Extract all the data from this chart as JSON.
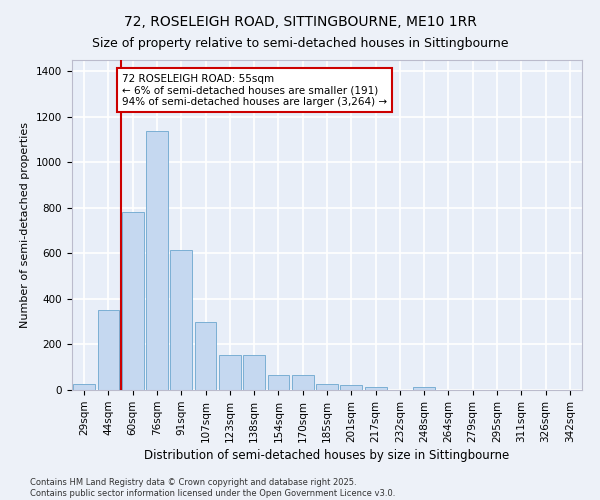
{
  "title1": "72, ROSELEIGH ROAD, SITTINGBOURNE, ME10 1RR",
  "title2": "Size of property relative to semi-detached houses in Sittingbourne",
  "xlabel": "Distribution of semi-detached houses by size in Sittingbourne",
  "ylabel": "Number of semi-detached properties",
  "bar_color": "#c5d8f0",
  "bar_edge_color": "#7bafd4",
  "bg_color": "#e8eef8",
  "grid_color": "#ffffff",
  "fig_bg_color": "#edf1f8",
  "categories": [
    "29sqm",
    "44sqm",
    "60sqm",
    "76sqm",
    "91sqm",
    "107sqm",
    "123sqm",
    "138sqm",
    "154sqm",
    "170sqm",
    "185sqm",
    "201sqm",
    "217sqm",
    "232sqm",
    "248sqm",
    "264sqm",
    "279sqm",
    "295sqm",
    "311sqm",
    "326sqm",
    "342sqm"
  ],
  "values": [
    25,
    350,
    780,
    1140,
    615,
    300,
    155,
    155,
    65,
    65,
    25,
    20,
    15,
    0,
    15,
    0,
    0,
    0,
    0,
    0,
    0
  ],
  "red_line_x": 1.5,
  "annotation_text": "72 ROSELEIGH ROAD: 55sqm\n← 6% of semi-detached houses are smaller (191)\n94% of semi-detached houses are larger (3,264) →",
  "annotation_box_color": "#ffffff",
  "annotation_box_edge": "#cc0000",
  "red_line_color": "#cc0000",
  "ylim": [
    0,
    1450
  ],
  "yticks": [
    0,
    200,
    400,
    600,
    800,
    1000,
    1200,
    1400
  ],
  "footer": "Contains HM Land Registry data © Crown copyright and database right 2025.\nContains public sector information licensed under the Open Government Licence v3.0.",
  "title1_fontsize": 10,
  "title2_fontsize": 9,
  "xlabel_fontsize": 8.5,
  "ylabel_fontsize": 8,
  "tick_fontsize": 7.5,
  "annotation_fontsize": 7.5,
  "footer_fontsize": 6
}
